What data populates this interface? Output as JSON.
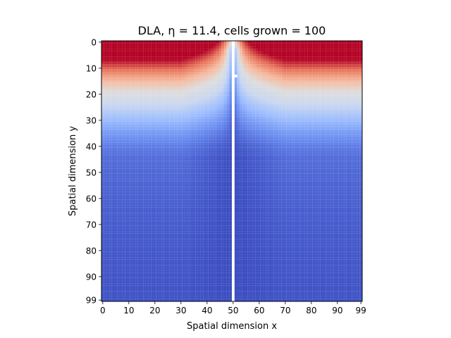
{
  "chart_data": {
    "type": "heatmap",
    "title": "DLA, η = 11.4, cells grown = 100",
    "xlabel": "Spatial dimension x",
    "ylabel": "Spatial dimension y",
    "grid_size": 100,
    "xlim": [
      0,
      99
    ],
    "ylim": [
      99,
      0
    ],
    "x_ticks": [
      0,
      10,
      20,
      30,
      40,
      50,
      60,
      70,
      80,
      90,
      99
    ],
    "y_ticks": [
      0,
      10,
      20,
      30,
      40,
      50,
      60,
      70,
      80,
      90,
      99
    ],
    "colormap": "coolwarm",
    "colormap_stops": [
      "#3b4cc0",
      "#6788ee",
      "#9abbff",
      "#c9d7f0",
      "#dddddd",
      "#f7b89c",
      "#e7745b",
      "#b40426"
    ],
    "value_range": [
      0,
      1
    ],
    "field": {
      "description": "concentration field, 1 at top boundary, 0 at cluster",
      "top_value": 1.0,
      "bottom_value": 0.0,
      "cluster_value": 0.0
    },
    "cluster_cells": {
      "column": 50,
      "rows_from": 0,
      "rows_to": 99,
      "extra": [
        [
          51,
          13
        ]
      ]
    }
  }
}
